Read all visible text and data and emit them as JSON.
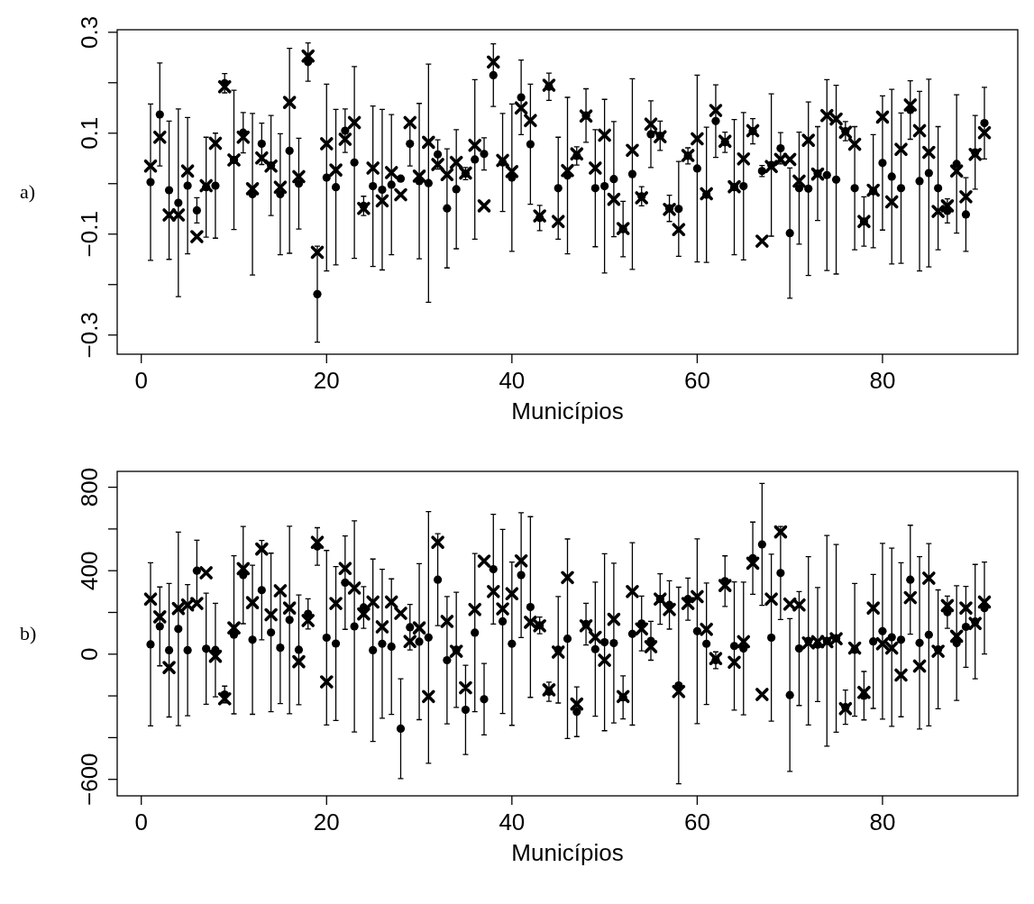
{
  "chart_data": [
    {
      "type": "scatter",
      "xlabel": "Municípios",
      "annotations": [
        "a)"
      ],
      "x": [
        1,
        2,
        3,
        4,
        5,
        6,
        7,
        8,
        9,
        10,
        11,
        12,
        13,
        14,
        15,
        16,
        17,
        18,
        19,
        20,
        21,
        22,
        23,
        24,
        25,
        26,
        27,
        28,
        29,
        30,
        31,
        32,
        33,
        34,
        35,
        36,
        37,
        38,
        39,
        40,
        41,
        42,
        43,
        44,
        45,
        46,
        47,
        48,
        49,
        50,
        51,
        52,
        53,
        54,
        55,
        56,
        57,
        58,
        59,
        60,
        61,
        62,
        63,
        64,
        65,
        66,
        67,
        68,
        69,
        70,
        71,
        72,
        73,
        74,
        75,
        76,
        77,
        78,
        79,
        80,
        81,
        82,
        83,
        84,
        85,
        86,
        87,
        88,
        89,
        90,
        91
      ],
      "xlim": [
        -2.6,
        94.6
      ],
      "xticks": [
        0,
        20,
        40,
        60,
        80
      ],
      "ylim": [
        -0.338,
        0.305
      ],
      "yticks": [
        0.3,
        {
          "value": 0.2,
          "label": null
        },
        0.1,
        {
          "value": 0,
          "label": null
        },
        -0.1,
        {
          "value": -0.2,
          "label": null
        },
        -0.3
      ],
      "series": [
        {
          "marker": "circle",
          "color": "#000000",
          "values": [
            0.003,
            0.137,
            -0.013,
            -0.038,
            -0.004,
            -0.053,
            -0.007,
            -0.004,
            0.199,
            0.047,
            0.101,
            -0.021,
            0.079,
            0.036,
            -0.021,
            0.065,
            0,
            0.241,
            -0.219,
            0.012,
            -0.007,
            0.105,
            0.042,
            -0.044,
            -0.005,
            -0.012,
            -0.002,
            0.01,
            0.079,
            0.005,
            0.001,
            0.058,
            -0.049,
            -0.011,
            0.02,
            0.048,
            0.059,
            0.215,
            0.042,
            0.012,
            0.171,
            0.078,
            -0.068,
            0.192,
            -0.009,
            0.016,
            0.055,
            0.135,
            -0.009,
            -0.005,
            0.009,
            -0.09,
            0.019,
            -0.025,
            0.098,
            0.095,
            -0.049,
            -0.05,
            0.055,
            0.03,
            -0.022,
            0.124,
            0.082,
            -0.007,
            -0.005,
            0.104,
            0.025,
            0.037,
            0.07,
            -0.098,
            -0.009,
            -0.01,
            0.02,
            0.017,
            0.008,
            0.104,
            -0.009,
            -0.075,
            -0.015,
            0.041,
            0.014,
            -0.009,
            0.146,
            0.005,
            0.021,
            -0.009,
            -0.054,
            0.039,
            -0.061,
            0.062,
            0.12
          ],
          "errors": [
            0.155,
            0.102,
            0.137,
            0.186,
            0.135,
            0.025,
            0.099,
            0.104,
            0.019,
            0.138,
            0.04,
            0.16,
            0.041,
            0.099,
            0.12,
            0.203,
            0.09,
            0.038,
            0.095,
            0.185,
            0.154,
            0.043,
            0.19,
            0.019,
            0.159,
            0.159,
            0.139,
            null,
            0.044,
            0.154,
            0.236,
            0.029,
            0.118,
            0.118,
            0.012,
            0.158,
            0.032,
            0.062,
            0.097,
            0.146,
            0.074,
            0.119,
            0.025,
            0.027,
            0.101,
            0.155,
            0.018,
            0.053,
            0.116,
            0.172,
            0.114,
            0.055,
            0.189,
            0.019,
            0.066,
            0.029,
            0.026,
            0.094,
            0.016,
            0.185,
            0.134,
            0.072,
            0.02,
            0.134,
            0.146,
            0.025,
            0.011,
            0.141,
            0.031,
            0.129,
            0.111,
            0.172,
            0.093,
            0.189,
            0.187,
            0.019,
            0.122,
            0.049,
            0.112,
            0.133,
            0.173,
            0.149,
            0.058,
            0.178,
            0.186,
            0.122,
            0.024,
            0.137,
            0.073,
            0.073,
            0.071
          ]
        },
        {
          "marker": "cross",
          "color": "#000000",
          "values": [
            0.035,
            0.092,
            -0.062,
            -0.062,
            0.025,
            -0.105,
            -0.004,
            0.08,
            0.192,
            0.047,
            0.092,
            -0.01,
            0.051,
            0.035,
            -0.007,
            0.161,
            0.014,
            0.253,
            -0.136,
            0.079,
            0.027,
            0.088,
            0.121,
            -0.049,
            0.031,
            -0.034,
            0.022,
            -0.022,
            0.121,
            0.015,
            0.082,
            0.038,
            0.018,
            0.042,
            0.021,
            0.076,
            -0.044,
            0.241,
            0.046,
            0.024,
            0.15,
            0.125,
            -0.064,
            0.195,
            -0.075,
            0.026,
            0.059,
            0.134,
            0.031,
            0.096,
            -0.031,
            -0.089,
            0.066,
            -0.028,
            0.118,
            0.093,
            -0.051,
            -0.091,
            0.056,
            0.089,
            -0.02,
            0.145,
            0.084,
            -0.006,
            0.049,
            0.105,
            -0.114,
            0.034,
            0.048,
            0.048,
            0.005,
            0.086,
            0.019,
            0.135,
            0.128,
            0.102,
            0.078,
            -0.075,
            -0.013,
            0.132,
            -0.036,
            0.068,
            0.156,
            0.105,
            0.062,
            -0.055,
            -0.044,
            0.025,
            -0.026,
            0.058,
            0.101
          ]
        }
      ]
    },
    {
      "type": "scatter",
      "xlabel": "Municípios",
      "annotations": [
        "b)"
      ],
      "x": [
        1,
        2,
        3,
        4,
        5,
        6,
        7,
        8,
        9,
        10,
        11,
        12,
        13,
        14,
        15,
        16,
        17,
        18,
        19,
        20,
        21,
        22,
        23,
        24,
        25,
        26,
        27,
        28,
        29,
        30,
        31,
        32,
        33,
        34,
        35,
        36,
        37,
        38,
        39,
        40,
        41,
        42,
        43,
        44,
        45,
        46,
        47,
        48,
        49,
        50,
        51,
        52,
        53,
        54,
        55,
        56,
        57,
        58,
        59,
        60,
        61,
        62,
        63,
        64,
        65,
        66,
        67,
        68,
        69,
        70,
        71,
        72,
        73,
        74,
        75,
        76,
        77,
        78,
        79,
        80,
        81,
        82,
        83,
        84,
        85,
        86,
        87,
        88,
        89,
        90,
        91
      ],
      "xlim": [
        -2.6,
        94.6
      ],
      "xticks": [
        0,
        20,
        40,
        60,
        80
      ],
      "ylim": [
        -679,
        876
      ],
      "yticks": [
        800,
        {
          "value": 600,
          "label": null
        },
        400,
        {
          "value": 200,
          "label": null
        },
        0,
        {
          "value": -200,
          "label": null
        },
        {
          "value": -400,
          "label": null
        },
        -600
      ],
      "series": [
        {
          "marker": "circle",
          "color": "#000000",
          "values": [
            47,
            133,
            19,
            121,
            19,
            400,
            26,
            20,
            -193,
            93,
            379,
            69,
            307,
            104,
            31,
            164,
            21,
            193,
            516,
            79,
            51,
            343,
            133,
            224,
            19,
            50,
            36,
            -357,
            129,
            60,
            80,
            357,
            -29,
            21,
            -267,
            103,
            -216,
            407,
            157,
            50,
            379,
            226,
            138,
            -180,
            21,
            74,
            -276,
            144,
            24,
            57,
            53,
            -207,
            97,
            147,
            64,
            264,
            236,
            -150,
            264,
            110,
            50,
            -29,
            350,
            39,
            27,
            460,
            526,
            79,
            389,
            -196,
            27,
            64,
            46,
            64,
            76,
            -254,
            21,
            -199,
            61,
            110,
            81,
            69,
            357,
            54,
            93,
            23,
            201,
            53,
            131,
            156,
            221
          ],
          "errors": [
            391,
            189,
            320,
            464,
            314,
            146,
            266,
            224,
            40,
            379,
            233,
            357,
            238,
            380,
            268,
            449,
            263,
            72,
            90,
            418,
            369,
            224,
            506,
            100,
            437,
            357,
            325,
            239,
            109,
            374,
            603,
            220,
            305,
            276,
            214,
            379,
            171,
            263,
            441,
            391,
            299,
            433,
            40,
            46,
            255,
            478,
            119,
            100,
            321,
            424,
            383,
            103,
            437,
            131,
            93,
            121,
            116,
            471,
            101,
            443,
            291,
            40,
            121,
            307,
            318,
            173,
            292,
            400,
            223,
            366,
            273,
            403,
            273,
            505,
            450,
            82,
            318,
            116,
            321,
            421,
            427,
            369,
            261,
            413,
            437,
            285,
            77,
            275,
            194,
            274,
            220
          ]
        },
        {
          "marker": "cross",
          "color": "#000000",
          "values": [
            264,
            179,
            -64,
            219,
            236,
            243,
            390,
            -10,
            -214,
            126,
            410,
            247,
            504,
            189,
            304,
            221,
            -36,
            161,
            536,
            -133,
            243,
            411,
            317,
            193,
            250,
            131,
            250,
            196,
            61,
            126,
            -203,
            536,
            157,
            14,
            -161,
            214,
            446,
            300,
            217,
            290,
            447,
            153,
            136,
            -171,
            10,
            367,
            -239,
            136,
            81,
            -29,
            167,
            -203,
            300,
            121,
            36,
            264,
            214,
            -179,
            243,
            276,
            119,
            -21,
            329,
            -39,
            60,
            436,
            -193,
            264,
            586,
            240,
            236,
            54,
            60,
            60,
            74,
            -261,
            29,
            -183,
            221,
            50,
            29,
            -100,
            271,
            -57,
            364,
            14,
            233,
            86,
            221,
            147,
            250
          ]
        }
      ]
    }
  ]
}
